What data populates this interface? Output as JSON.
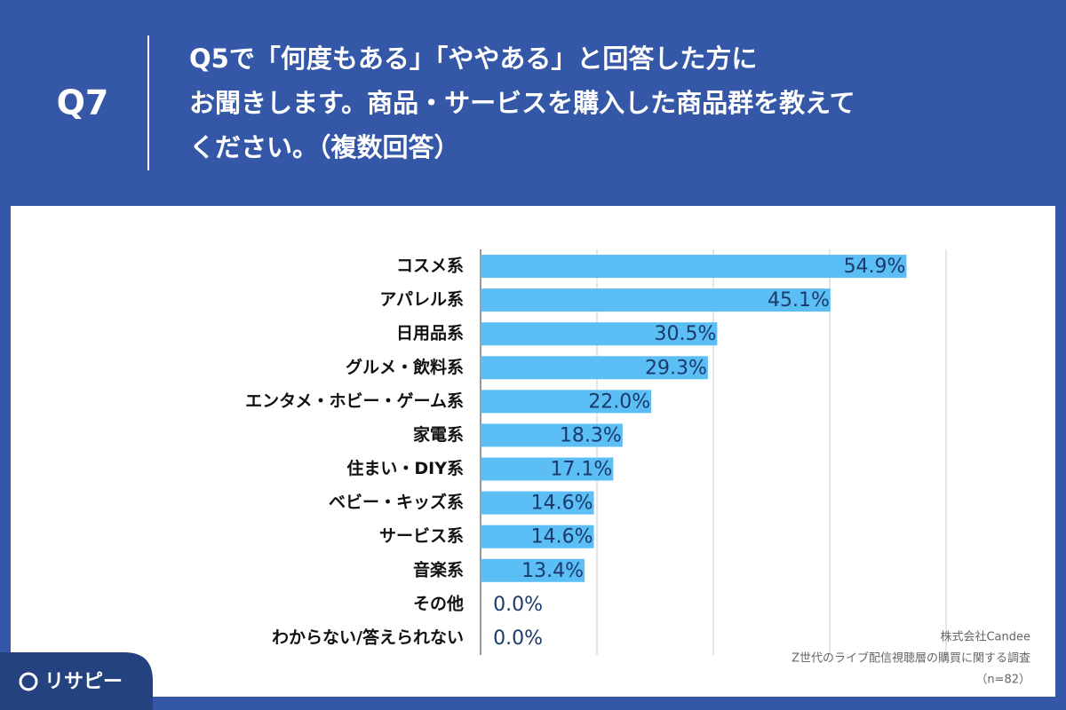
{
  "header": {
    "question_no": "Q7",
    "title_lines": [
      "Q5で「何度もある」「ややある」と回答した方に",
      "お聞きします。商品・サービスを購入した商品群を教えて",
      "ください。（複数回答）"
    ]
  },
  "chart_data": {
    "type": "bar",
    "orientation": "horizontal",
    "categories": [
      "コスメ系",
      "アパレル系",
      "日用品系",
      "グルメ・飲料系",
      "エンタメ・ホビー・ゲーム系",
      "家電系",
      "住まい・DIY系",
      "ベビー・キッズ系",
      "サービス系",
      "音楽系",
      "その他",
      "わからない/答えられない"
    ],
    "values": [
      54.9,
      45.1,
      30.5,
      29.3,
      22.0,
      18.3,
      17.1,
      14.6,
      14.6,
      13.4,
      0.0,
      0.0
    ],
    "value_labels": [
      "54.9%",
      "45.1%",
      "30.5%",
      "29.3%",
      "22.0%",
      "18.3%",
      "17.1%",
      "14.6%",
      "14.6%",
      "13.4%",
      "0.0%",
      "0.0%"
    ],
    "color": "#5bbef5",
    "xlim": [
      0,
      60
    ],
    "xticks": [
      0,
      15,
      30,
      45,
      60
    ],
    "grid": true
  },
  "source": [
    "株式会社Candee",
    "Z世代のライブ配信視聴層の購買に関する調査",
    "（n=82）"
  ],
  "logo": "リサピー"
}
